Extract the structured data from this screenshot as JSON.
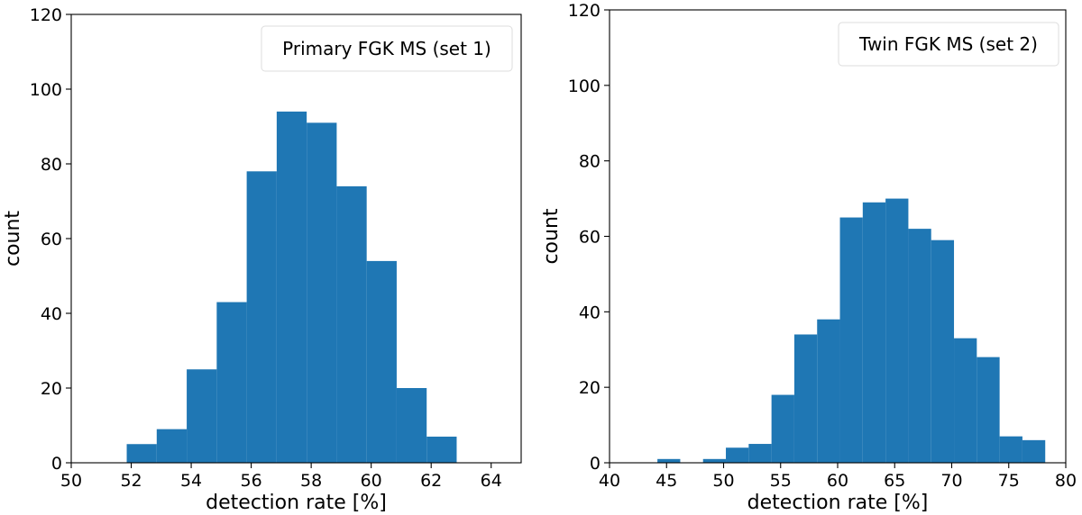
{
  "chart_data": [
    {
      "type": "bar",
      "legend": "Primary FGK MS (set 1)",
      "legend_position": "top-right",
      "xlabel": "detection rate [%]",
      "ylabel": "count",
      "xlim": [
        50,
        65
      ],
      "ylim": [
        0,
        120
      ],
      "xticks": [
        "50",
        "52",
        "54",
        "56",
        "58",
        "60",
        "62",
        "64"
      ],
      "yticks": [
        "0",
        "20",
        "40",
        "60",
        "80",
        "100",
        "120"
      ],
      "bins": [
        {
          "x0": 51.85,
          "x1": 52.85,
          "count": 5
        },
        {
          "x0": 52.85,
          "x1": 53.85,
          "count": 9
        },
        {
          "x0": 53.85,
          "x1": 54.85,
          "count": 25
        },
        {
          "x0": 54.85,
          "x1": 55.85,
          "count": 43
        },
        {
          "x0": 55.85,
          "x1": 56.85,
          "count": 78
        },
        {
          "x0": 56.85,
          "x1": 57.85,
          "count": 94
        },
        {
          "x0": 57.85,
          "x1": 58.85,
          "count": 91
        },
        {
          "x0": 58.85,
          "x1": 59.85,
          "count": 74
        },
        {
          "x0": 59.85,
          "x1": 60.85,
          "count": 54
        },
        {
          "x0": 60.85,
          "x1": 61.85,
          "count": 20
        },
        {
          "x0": 61.85,
          "x1": 62.85,
          "count": 7
        }
      ],
      "bar_color": "#1f77b4"
    },
    {
      "type": "bar",
      "legend": "Twin FGK MS (set 2)",
      "legend_position": "top-right",
      "xlabel": "detection rate [%]",
      "ylabel": "count",
      "xlim": [
        40,
        80
      ],
      "ylim": [
        0,
        120
      ],
      "xticks": [
        "40",
        "45",
        "50",
        "55",
        "60",
        "65",
        "70",
        "75",
        "80"
      ],
      "yticks": [
        "0",
        "20",
        "40",
        "60",
        "80",
        "100",
        "120"
      ],
      "bins": [
        {
          "x0": 44.2,
          "x1": 46.2,
          "count": 1
        },
        {
          "x0": 46.2,
          "x1": 48.2,
          "count": 0
        },
        {
          "x0": 48.2,
          "x1": 50.2,
          "count": 1
        },
        {
          "x0": 50.2,
          "x1": 52.2,
          "count": 4
        },
        {
          "x0": 52.2,
          "x1": 54.2,
          "count": 5
        },
        {
          "x0": 54.2,
          "x1": 56.2,
          "count": 18
        },
        {
          "x0": 56.2,
          "x1": 58.2,
          "count": 34
        },
        {
          "x0": 58.2,
          "x1": 60.2,
          "count": 38
        },
        {
          "x0": 60.2,
          "x1": 62.2,
          "count": 65
        },
        {
          "x0": 62.2,
          "x1": 64.2,
          "count": 69
        },
        {
          "x0": 64.2,
          "x1": 66.2,
          "count": 70
        },
        {
          "x0": 66.2,
          "x1": 68.2,
          "count": 62
        },
        {
          "x0": 68.2,
          "x1": 70.2,
          "count": 59
        },
        {
          "x0": 70.2,
          "x1": 72.2,
          "count": 33
        },
        {
          "x0": 72.2,
          "x1": 74.2,
          "count": 28
        },
        {
          "x0": 74.2,
          "x1": 76.2,
          "count": 7
        },
        {
          "x0": 76.2,
          "x1": 78.2,
          "count": 6
        }
      ],
      "bar_color": "#1f77b4"
    }
  ]
}
